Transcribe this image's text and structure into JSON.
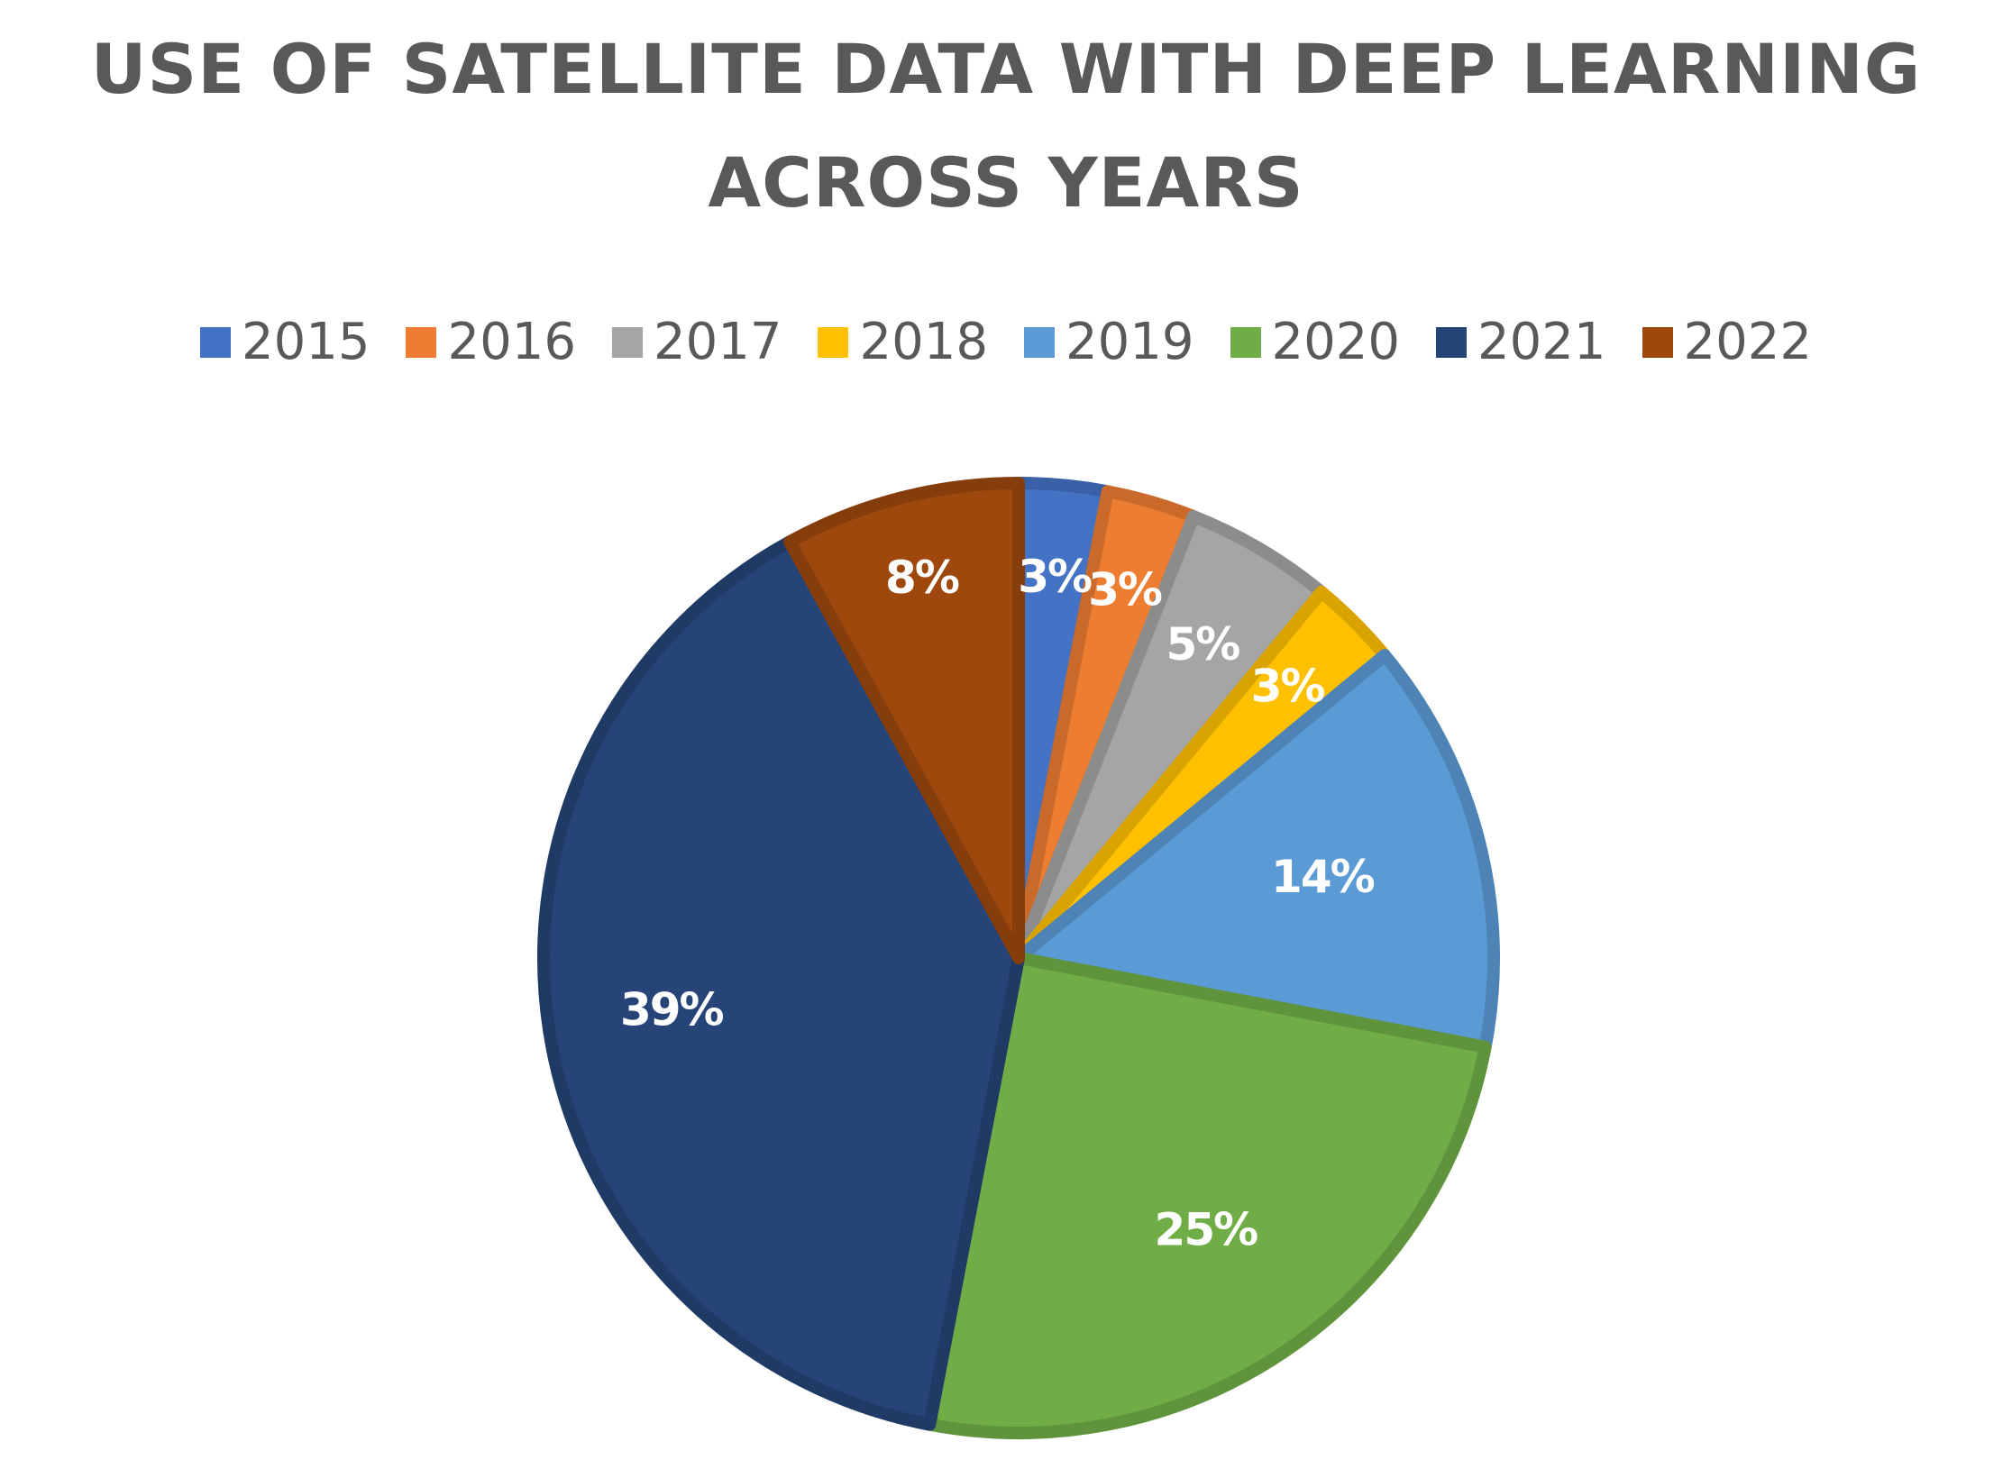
{
  "chart_data": {
    "type": "pie",
    "title": "USE OF SATELLITE DATA WITH DEEP LEARNING\nACROSS YEARS",
    "categories": [
      "2015",
      "2016",
      "2017",
      "2018",
      "2019",
      "2020",
      "2021",
      "2022"
    ],
    "values": [
      3,
      3,
      5,
      3,
      14,
      25,
      39,
      8
    ],
    "labels": [
      "3%",
      "3%",
      "5%",
      "3%",
      "14%",
      "25%",
      "39%",
      "8%"
    ],
    "colors": [
      "#4472C4",
      "#ED7D31",
      "#A5A5A5",
      "#FFC000",
      "#5B9BD5",
      "#70AD47",
      "#264478",
      "#9E480E"
    ],
    "legend_position": "top"
  }
}
